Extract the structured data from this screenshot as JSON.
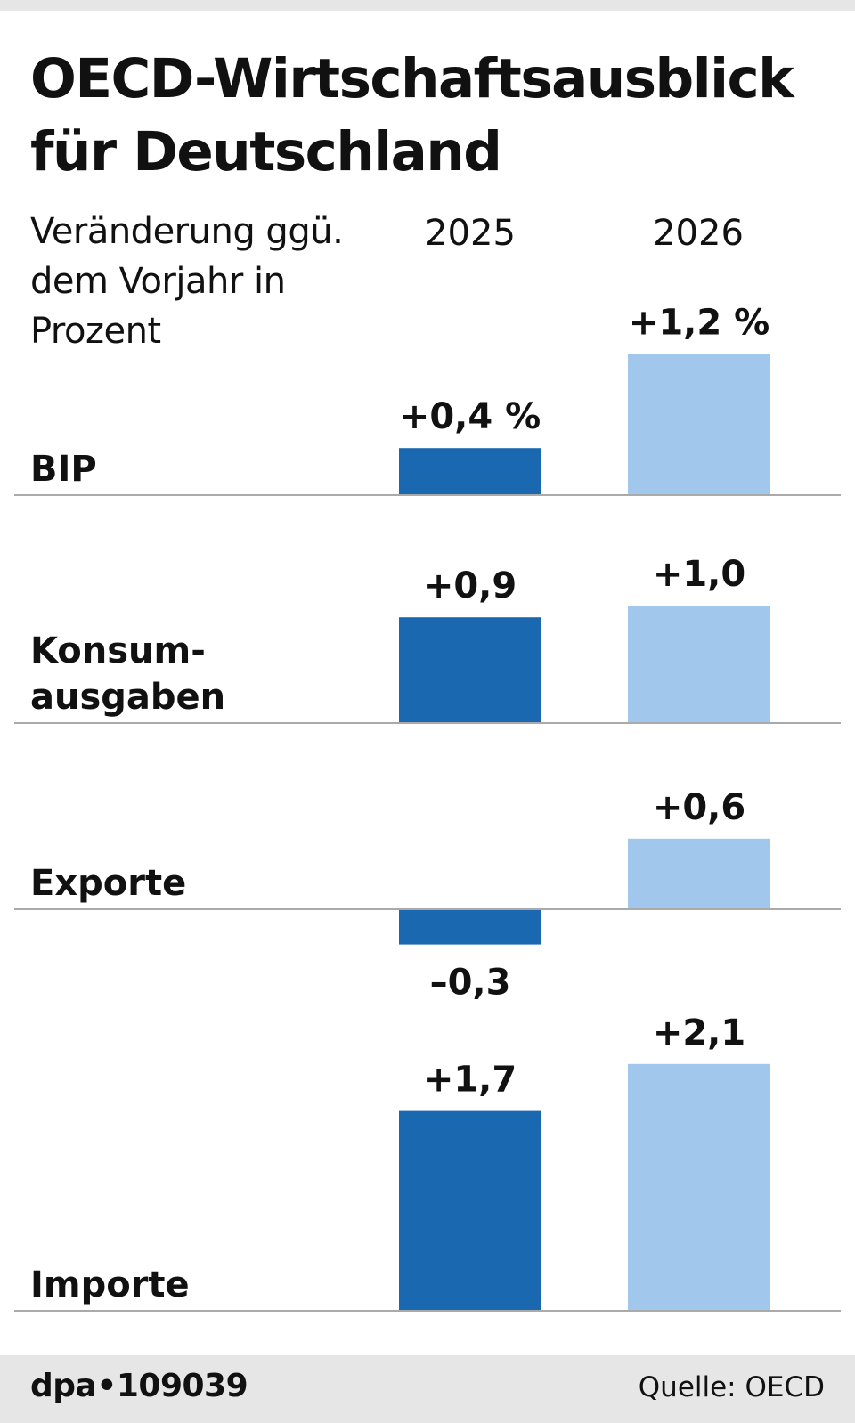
{
  "title": "OECD-Wirtschaftsausblick für Deutschland",
  "subtitle": "Veränderung ggü. dem Vorjahr in Prozent",
  "footer": {
    "agency": "dpa•109039",
    "source": "Quelle: OECD"
  },
  "colors": {
    "y2025": "#1a69b0",
    "y2026": "#a1c8ec",
    "baseline": "#aaaaaa"
  },
  "chart_data": {
    "type": "bar",
    "layout": "small-multiples",
    "years": [
      "2025",
      "2026"
    ],
    "categories": [
      {
        "label": "BIP",
        "values": [
          0.4,
          1.2
        ],
        "value_labels": [
          "+0,4 %",
          "+1,2 %"
        ]
      },
      {
        "label": "Konsum-\nausgaben",
        "values": [
          0.9,
          1.0
        ],
        "value_labels": [
          "+0,9",
          "+1,0"
        ]
      },
      {
        "label": "Exporte",
        "values": [
          -0.3,
          0.6
        ],
        "value_labels": [
          "–0,3",
          "+0,6"
        ]
      },
      {
        "label": "Importe",
        "values": [
          1.7,
          2.1
        ],
        "value_labels": [
          "+1,7",
          "+2,1"
        ]
      }
    ],
    "unit": "%"
  }
}
